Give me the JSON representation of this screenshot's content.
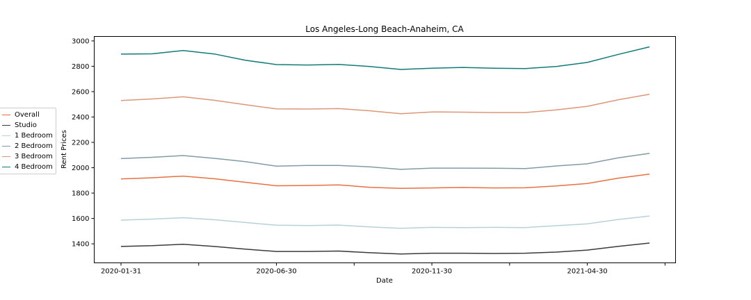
{
  "chart_data": {
    "type": "line",
    "title": "Los Angeles-Long Beach-Anaheim, CA",
    "xlabel": "Date",
    "ylabel": "Rent Prices",
    "x": [
      "2020-01-31",
      "2020-02-29",
      "2020-03-31",
      "2020-04-30",
      "2020-05-31",
      "2020-06-30",
      "2020-07-31",
      "2020-08-31",
      "2020-09-30",
      "2020-10-31",
      "2020-11-30",
      "2020-12-31",
      "2021-01-31",
      "2021-02-28",
      "2021-03-31",
      "2021-04-30",
      "2021-05-31",
      "2021-06-30"
    ],
    "xticks": [
      "2020-01-31",
      "2020-06-30",
      "2020-11-30",
      "2021-04-30"
    ],
    "yticks": [
      1400,
      1600,
      1800,
      2000,
      2200,
      2400,
      2600,
      2800,
      3000
    ],
    "ylim": [
      1250,
      3035
    ],
    "legend_position": "center-left",
    "grid": false,
    "series": [
      {
        "name": "Overall",
        "color": "#e8703f",
        "values": [
          1912,
          1921,
          1934,
          1913,
          1885,
          1858,
          1860,
          1865,
          1846,
          1837,
          1841,
          1844,
          1841,
          1842,
          1856,
          1876,
          1918,
          1949
        ]
      },
      {
        "name": "Studio",
        "color": "#3a3a3a",
        "values": [
          1379,
          1385,
          1397,
          1379,
          1358,
          1340,
          1340,
          1343,
          1330,
          1320,
          1326,
          1326,
          1324,
          1326,
          1335,
          1351,
          1380,
          1406
        ]
      },
      {
        "name": "1 Bedroom",
        "color": "#b6d1d8",
        "values": [
          1587,
          1595,
          1606,
          1590,
          1568,
          1547,
          1544,
          1548,
          1533,
          1522,
          1530,
          1528,
          1530,
          1528,
          1543,
          1557,
          1592,
          1619
        ]
      },
      {
        "name": "2 Bedroom",
        "color": "#809ba6",
        "values": [
          2072,
          2082,
          2096,
          2074,
          2048,
          2013,
          2018,
          2018,
          2007,
          1987,
          1997,
          1997,
          1996,
          1993,
          2014,
          2031,
          2078,
          2113
        ]
      },
      {
        "name": "3 Bedroom",
        "color": "#dd9677",
        "values": [
          2530,
          2542,
          2559,
          2532,
          2497,
          2464,
          2463,
          2466,
          2449,
          2426,
          2440,
          2438,
          2435,
          2435,
          2456,
          2484,
          2536,
          2579
        ]
      },
      {
        "name": "4 Bedroom",
        "color": "#0e7b79",
        "values": [
          2896,
          2898,
          2924,
          2897,
          2848,
          2813,
          2810,
          2815,
          2798,
          2775,
          2784,
          2791,
          2784,
          2782,
          2798,
          2830,
          2894,
          2953
        ]
      }
    ]
  }
}
